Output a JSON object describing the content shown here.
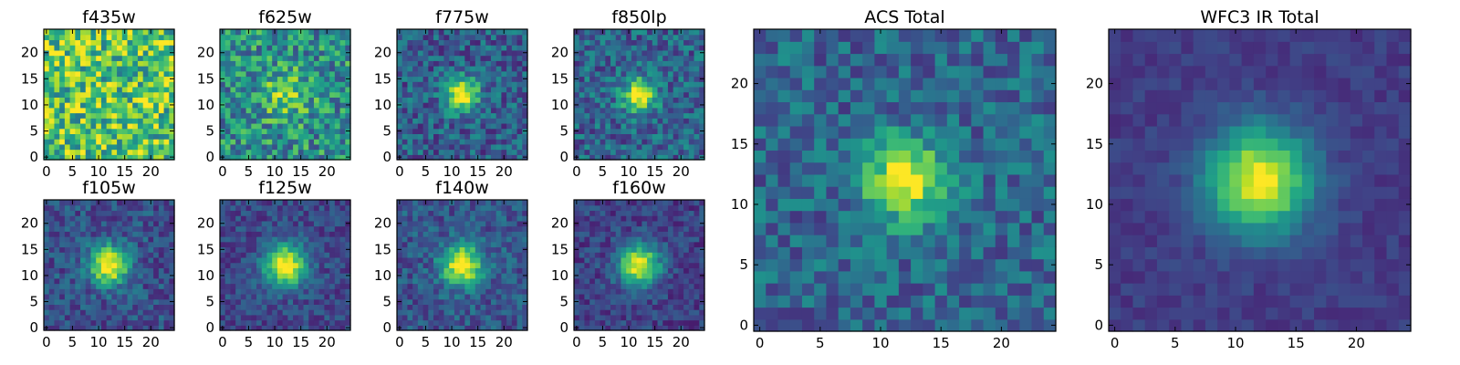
{
  "chart_data": [
    {
      "type": "heatmap",
      "title": "f435w",
      "colormap": "viridis",
      "grid_size": 25,
      "source_center": null,
      "peak": 0.05,
      "sigma": 5.0,
      "noise": 0.65,
      "floor": 0.72,
      "seed": 11,
      "xticks": [
        "0",
        "5",
        "10",
        "15",
        "20"
      ],
      "yticks": [
        "0",
        "5",
        "10",
        "15",
        "20"
      ],
      "xlim": [
        -0.5,
        24.5
      ],
      "ylim": [
        -0.5,
        24.5
      ]
    },
    {
      "type": "heatmap",
      "title": "f625w",
      "colormap": "viridis",
      "grid_size": 25,
      "source_center": [
        12,
        12
      ],
      "peak": 0.32,
      "sigma": 3.0,
      "noise": 0.55,
      "floor": 0.5,
      "seed": 23,
      "xticks": [
        "0",
        "5",
        "10",
        "15",
        "20"
      ],
      "yticks": [
        "0",
        "5",
        "10",
        "15",
        "20"
      ],
      "xlim": [
        -0.5,
        24.5
      ],
      "ylim": [
        -0.5,
        24.5
      ]
    },
    {
      "type": "heatmap",
      "title": "f775w",
      "colormap": "viridis",
      "grid_size": 25,
      "source_center": [
        12,
        12
      ],
      "peak": 0.75,
      "sigma": 2.2,
      "noise": 0.4,
      "floor": 0.3,
      "seed": 37,
      "xticks": [
        "0",
        "5",
        "10",
        "15",
        "20"
      ],
      "yticks": [
        "0",
        "5",
        "10",
        "15",
        "20"
      ],
      "xlim": [
        -0.5,
        24.5
      ],
      "ylim": [
        -0.5,
        24.5
      ]
    },
    {
      "type": "heatmap",
      "title": "f850lp",
      "colormap": "viridis",
      "grid_size": 25,
      "source_center": [
        12,
        12
      ],
      "peak": 0.72,
      "sigma": 2.2,
      "noise": 0.4,
      "floor": 0.32,
      "seed": 41,
      "xticks": [
        "0",
        "5",
        "10",
        "15",
        "20"
      ],
      "yticks": [
        "0",
        "5",
        "10",
        "15",
        "20"
      ],
      "xlim": [
        -0.5,
        24.5
      ],
      "ylim": [
        -0.5,
        24.5
      ]
    },
    {
      "type": "heatmap",
      "title": "f105w",
      "colormap": "viridis",
      "grid_size": 25,
      "source_center": [
        12,
        12
      ],
      "peak": 0.8,
      "sigma": 2.6,
      "noise": 0.3,
      "floor": 0.25,
      "seed": 53,
      "xticks": [
        "0",
        "5",
        "10",
        "15",
        "20"
      ],
      "yticks": [
        "0",
        "5",
        "10",
        "15",
        "20"
      ],
      "xlim": [
        -0.5,
        24.5
      ],
      "ylim": [
        -0.5,
        24.5
      ]
    },
    {
      "type": "heatmap",
      "title": "f125w",
      "colormap": "viridis",
      "grid_size": 25,
      "source_center": [
        12,
        12
      ],
      "peak": 0.82,
      "sigma": 2.8,
      "noise": 0.25,
      "floor": 0.22,
      "seed": 67,
      "xticks": [
        "0",
        "5",
        "10",
        "15",
        "20"
      ],
      "yticks": [
        "0",
        "5",
        "10",
        "15",
        "20"
      ],
      "xlim": [
        -0.5,
        24.5
      ],
      "ylim": [
        -0.5,
        24.5
      ]
    },
    {
      "type": "heatmap",
      "title": "f140w",
      "colormap": "viridis",
      "grid_size": 25,
      "source_center": [
        12,
        12
      ],
      "peak": 0.78,
      "sigma": 2.7,
      "noise": 0.3,
      "floor": 0.27,
      "seed": 79,
      "xticks": [
        "0",
        "5",
        "10",
        "15",
        "20"
      ],
      "yticks": [
        "0",
        "5",
        "10",
        "15",
        "20"
      ],
      "xlim": [
        -0.5,
        24.5
      ],
      "ylim": [
        -0.5,
        24.5
      ]
    },
    {
      "type": "heatmap",
      "title": "f160w",
      "colormap": "viridis",
      "grid_size": 25,
      "source_center": [
        12,
        12
      ],
      "peak": 0.82,
      "sigma": 2.7,
      "noise": 0.25,
      "floor": 0.2,
      "seed": 83,
      "xticks": [
        "0",
        "5",
        "10",
        "15",
        "20"
      ],
      "yticks": [
        "0",
        "5",
        "10",
        "15",
        "20"
      ],
      "xlim": [
        -0.5,
        24.5
      ],
      "ylim": [
        -0.5,
        24.5
      ]
    },
    {
      "type": "heatmap",
      "title": "ACS Total",
      "colormap": "viridis",
      "grid_size": 25,
      "source_center": [
        12,
        12
      ],
      "peak": 0.7,
      "sigma": 2.3,
      "noise": 0.35,
      "floor": 0.33,
      "seed": 97,
      "xticks": [
        "0",
        "5",
        "10",
        "15",
        "20"
      ],
      "yticks": [
        "0",
        "5",
        "10",
        "15",
        "20"
      ],
      "xlim": [
        -0.5,
        24.5
      ],
      "ylim": [
        -0.5,
        24.5
      ]
    },
    {
      "type": "heatmap",
      "title": "WFC3 IR Total",
      "colormap": "viridis",
      "grid_size": 25,
      "source_center": [
        12,
        12
      ],
      "peak": 0.82,
      "sigma": 3.0,
      "noise": 0.12,
      "floor": 0.18,
      "seed": 101,
      "xticks": [
        "0",
        "5",
        "10",
        "15",
        "20"
      ],
      "yticks": [
        "0",
        "5",
        "10",
        "15",
        "20"
      ],
      "xlim": [
        -0.5,
        24.5
      ],
      "ylim": [
        -0.5,
        24.5
      ]
    }
  ]
}
